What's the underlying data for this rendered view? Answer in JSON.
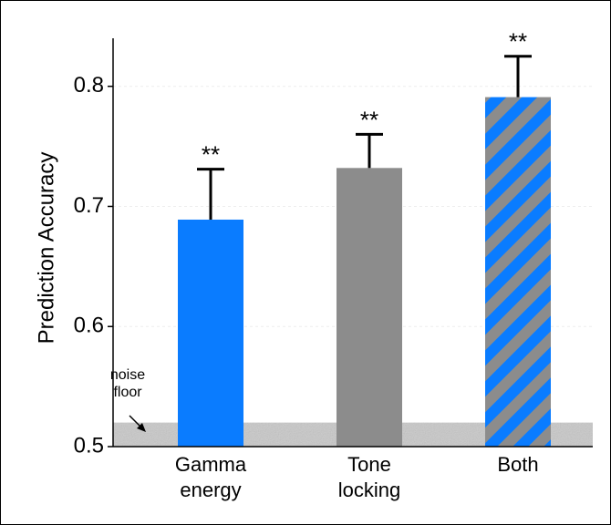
{
  "chart_data": {
    "type": "bar",
    "ylabel": "Prediction Accuracy",
    "categories": [
      "Gamma energy",
      "Tone locking",
      "Both"
    ],
    "values": [
      0.689,
      0.732,
      0.791
    ],
    "errors": [
      0.042,
      0.028,
      0.034
    ],
    "annotations": [
      "**",
      "**",
      "**"
    ],
    "bar_styles": [
      {
        "color": "#0a7cff"
      },
      {
        "color": "#8c8c8c"
      },
      {
        "stripes": [
          "#0a7cff",
          "#8c8c8c"
        ]
      }
    ],
    "noise_floor": {
      "label": "noise floor",
      "value": 0.52,
      "color": "#c8c8c8"
    },
    "ylim": [
      0.5,
      0.84
    ],
    "yticks": [
      0.5,
      0.6,
      0.7,
      0.8
    ],
    "grid": true
  }
}
